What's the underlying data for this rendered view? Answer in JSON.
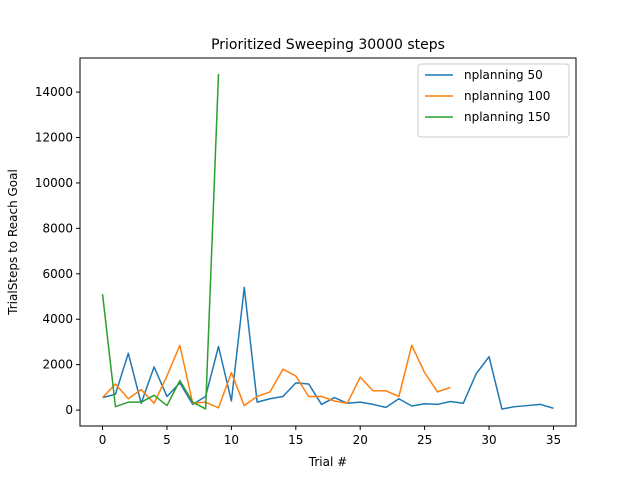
{
  "chart_data": {
    "type": "line",
    "title": "Prioritized Sweeping 30000 steps",
    "xlabel": "Trial #",
    "ylabel": "TrialSteps to Reach Goal",
    "xlim": [
      -1.75,
      36.75
    ],
    "ylim": [
      -700,
      15500
    ],
    "xticks": [
      0,
      5,
      10,
      15,
      20,
      25,
      30,
      35
    ],
    "yticks": [
      0,
      2000,
      4000,
      6000,
      8000,
      10000,
      12000,
      14000
    ],
    "grid": false,
    "legend_position": "top-right",
    "series": [
      {
        "name": "nplanning 50",
        "color": "#1f77b4",
        "x": [
          0,
          1,
          2,
          3,
          4,
          5,
          6,
          7,
          8,
          9,
          10,
          11,
          12,
          13,
          14,
          15,
          16,
          17,
          18,
          19,
          20,
          21,
          22,
          23,
          24,
          25,
          26,
          27,
          28,
          29,
          30,
          31,
          32,
          33,
          34,
          35
        ],
        "y": [
          550,
          700,
          2500,
          300,
          1900,
          600,
          1200,
          250,
          600,
          2800,
          400,
          5400,
          350,
          500,
          600,
          1200,
          1150,
          250,
          550,
          300,
          350,
          250,
          120,
          500,
          180,
          280,
          250,
          380,
          300,
          1600,
          2350,
          50,
          150,
          200,
          250,
          80
        ]
      },
      {
        "name": "nplanning 100",
        "color": "#ff7f0e",
        "x": [
          0,
          1,
          2,
          3,
          4,
          5,
          6,
          7,
          8,
          9,
          10,
          11,
          12,
          13,
          14,
          15,
          16,
          17,
          18,
          19,
          20,
          21,
          22,
          23,
          24,
          25,
          26,
          27
        ],
        "y": [
          550,
          1150,
          500,
          900,
          300,
          1500,
          2850,
          300,
          350,
          100,
          1650,
          200,
          600,
          800,
          1800,
          1500,
          600,
          600,
          400,
          300,
          1450,
          850,
          850,
          600,
          2850,
          1650,
          800,
          1000
        ]
      },
      {
        "name": "nplanning 150",
        "color": "#2ca02c",
        "x": [
          0,
          1,
          2,
          3,
          4,
          5,
          6,
          7,
          8,
          9
        ],
        "y": [
          5100,
          150,
          350,
          350,
          650,
          200,
          1300,
          350,
          50,
          14800
        ]
      }
    ]
  }
}
